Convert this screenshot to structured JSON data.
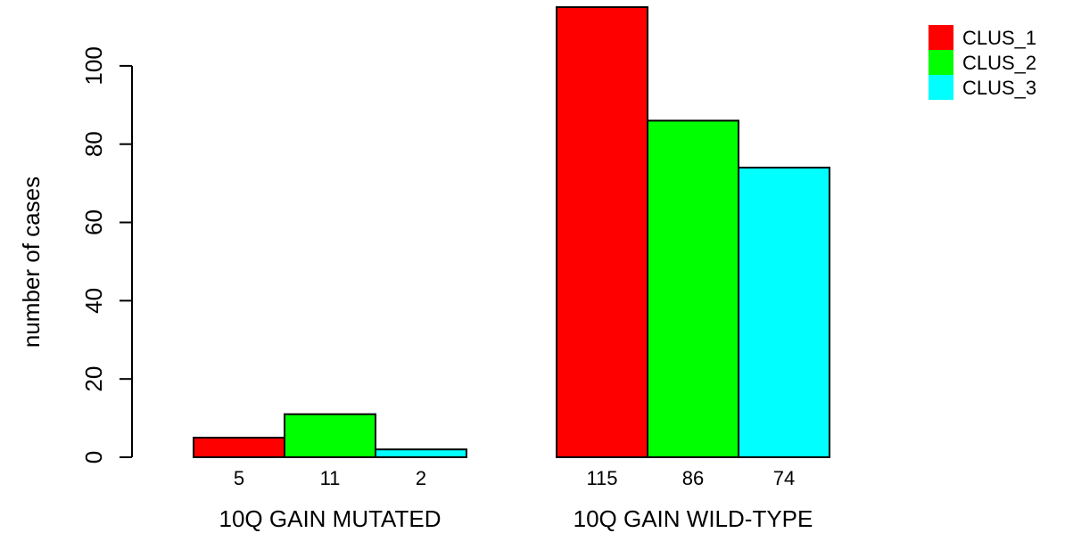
{
  "chart_data": {
    "type": "bar",
    "grouped": true,
    "ylabel": "number of cases",
    "ylim": [
      0,
      120
    ],
    "yticks": [
      0,
      20,
      40,
      60,
      80,
      100
    ],
    "grid": false,
    "legend_position": "top-right",
    "categories": [
      "10Q GAIN MUTATED",
      "10Q GAIN WILD-TYPE"
    ],
    "series": [
      {
        "name": "CLUS_1",
        "color": "#ff0000",
        "values": [
          5,
          115
        ]
      },
      {
        "name": "CLUS_2",
        "color": "#00ff00",
        "values": [
          11,
          86
        ]
      },
      {
        "name": "CLUS_3",
        "color": "#00ffff",
        "values": [
          2,
          74
        ]
      }
    ]
  }
}
